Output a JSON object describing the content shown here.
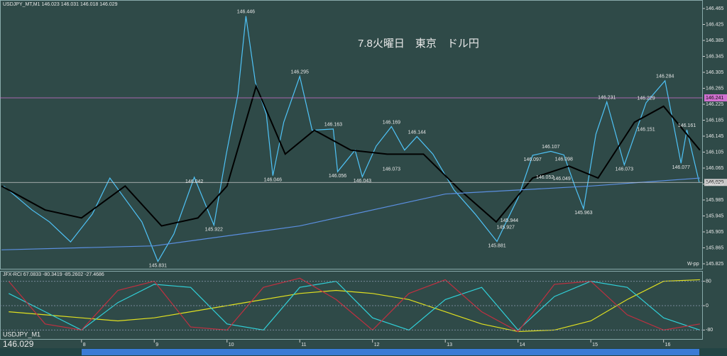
{
  "chart_data": [
    {
      "type": "line",
      "title": "7.8火曜日　東京　ドル円",
      "subtitle": "USDJPY_MT,M1  146.023 146.031 146.018 146.029",
      "annotation": "W-pp",
      "xlim": [
        6.88,
        16.54
      ],
      "xticks": [
        8,
        9,
        10,
        11,
        12,
        13,
        14,
        15,
        16
      ],
      "ylim": [
        145.825,
        146.465
      ],
      "yticks": [
        145.825,
        145.865,
        145.905,
        145.945,
        145.985,
        146.025,
        146.065,
        146.105,
        146.145,
        146.185,
        146.225,
        146.265,
        146.305,
        146.345,
        146.385,
        146.425,
        146.465
      ],
      "grid": false,
      "hlines": [
        146.241,
        146.029
      ],
      "hline_colors": [
        "#d070d0",
        "#c8c8c8"
      ],
      "series": [
        {
          "color": "#4fc3f7",
          "x": [
            6.93,
            7.32,
            7.56,
            7.85,
            8.15,
            8.39,
            8.59,
            8.83,
            9.05,
            9.27,
            9.55,
            9.82,
            9.99,
            10.15,
            10.26,
            10.39,
            10.54,
            10.63,
            10.78,
            11.0,
            11.17,
            11.46,
            11.52,
            11.76,
            11.86,
            12.05,
            12.26,
            12.44,
            12.61,
            12.83,
            13.12,
            13.41,
            13.71,
            13.83,
            14.0,
            14.2,
            14.45,
            14.63,
            14.78,
            14.9,
            15.07,
            15.22,
            15.46,
            15.76,
            16.02,
            16.24,
            16.32,
            16.49
          ],
          "values": [
            146.02,
            145.96,
            145.93,
            145.88,
            145.95,
            146.04,
            145.99,
            145.93,
            145.831,
            145.9,
            146.042,
            145.922,
            146.1,
            146.25,
            146.446,
            146.28,
            146.2,
            146.046,
            146.18,
            146.295,
            146.16,
            146.163,
            146.056,
            146.11,
            146.043,
            146.12,
            146.169,
            146.11,
            146.144,
            146.1,
            146.01,
            145.95,
            145.881,
            145.927,
            145.99,
            146.097,
            146.107,
            146.098,
            146.02,
            145.963,
            146.15,
            146.231,
            146.073,
            146.229,
            146.284,
            146.077,
            146.161,
            146.029
          ]
        },
        {
          "color": "#000000",
          "x": [
            6.9,
            7.5,
            8,
            8.6,
            9.1,
            9.6,
            10.0,
            10.4,
            10.8,
            11.2,
            11.7,
            12.2,
            12.7,
            13.2,
            13.7,
            14.2,
            14.7,
            15.1,
            15.6,
            16.0,
            16.5
          ],
          "values": [
            146.02,
            145.96,
            145.94,
            146.02,
            145.92,
            145.94,
            146.02,
            146.27,
            146.1,
            146.16,
            146.11,
            146.1,
            146.1,
            146.01,
            145.93,
            146.04,
            146.07,
            146.04,
            146.18,
            146.22,
            146.11
          ]
        },
        {
          "color": "#5b8fe0",
          "x": [
            6.9,
            9,
            11,
            13,
            15,
            16.5
          ],
          "values": [
            145.86,
            145.87,
            145.92,
            146.0,
            146.02,
            146.04
          ]
        }
      ],
      "labels": {
        "x": [
          10.26,
          9.05,
          11.0,
          9.82,
          9.55,
          10.63,
          11.46,
          12.26,
          12.61,
          11.52,
          11.86,
          12.26,
          13.71,
          13.83,
          13.88,
          14.2,
          14.45,
          14.63,
          14.37,
          14.6,
          14.9,
          15.22,
          15.76,
          16.02,
          15.76,
          16.32,
          15.46,
          16.24
        ],
        "values": [
          146.446,
          145.831,
          146.295,
          145.922,
          146.042,
          146.046,
          146.163,
          146.169,
          146.144,
          146.056,
          146.043,
          146.073,
          145.881,
          145.927,
          145.944,
          146.097,
          146.107,
          146.098,
          146.052,
          146.049,
          145.963,
          146.231,
          146.229,
          146.284,
          146.151,
          146.161,
          146.073,
          146.077
        ]
      }
    },
    {
      "type": "line",
      "subtitle": "JFX-RCI 67.0833 -80.3419 -85.2602 -27.4686",
      "symbol": "USDJPY_M1",
      "xlim": [
        6.88,
        16.54
      ],
      "ylim": [
        -100,
        100
      ],
      "yticks": [
        80,
        0,
        -80
      ],
      "x": [
        7,
        7.5,
        8,
        8.5,
        9,
        9.5,
        10,
        10.5,
        11,
        11.5,
        12,
        12.5,
        13,
        13.5,
        14,
        14.5,
        15,
        15.5,
        16,
        16.5
      ],
      "series": [
        {
          "color": "#e0e020",
          "values": [
            -20,
            -30,
            -40,
            -50,
            -40,
            -20,
            0,
            20,
            40,
            50,
            40,
            20,
            -20,
            -60,
            -85,
            -80,
            -50,
            20,
            80,
            85
          ]
        },
        {
          "color": "#30d0d8",
          "values": [
            40,
            -20,
            -80,
            10,
            70,
            60,
            -60,
            -80,
            60,
            80,
            -40,
            -80,
            20,
            60,
            -80,
            30,
            80,
            60,
            -40,
            -80
          ]
        },
        {
          "color": "#c03040",
          "values": [
            80,
            -60,
            -80,
            50,
            80,
            -70,
            -80,
            60,
            90,
            20,
            -80,
            40,
            85,
            -20,
            -85,
            70,
            80,
            -30,
            -80,
            -60
          ]
        }
      ]
    }
  ]
}
